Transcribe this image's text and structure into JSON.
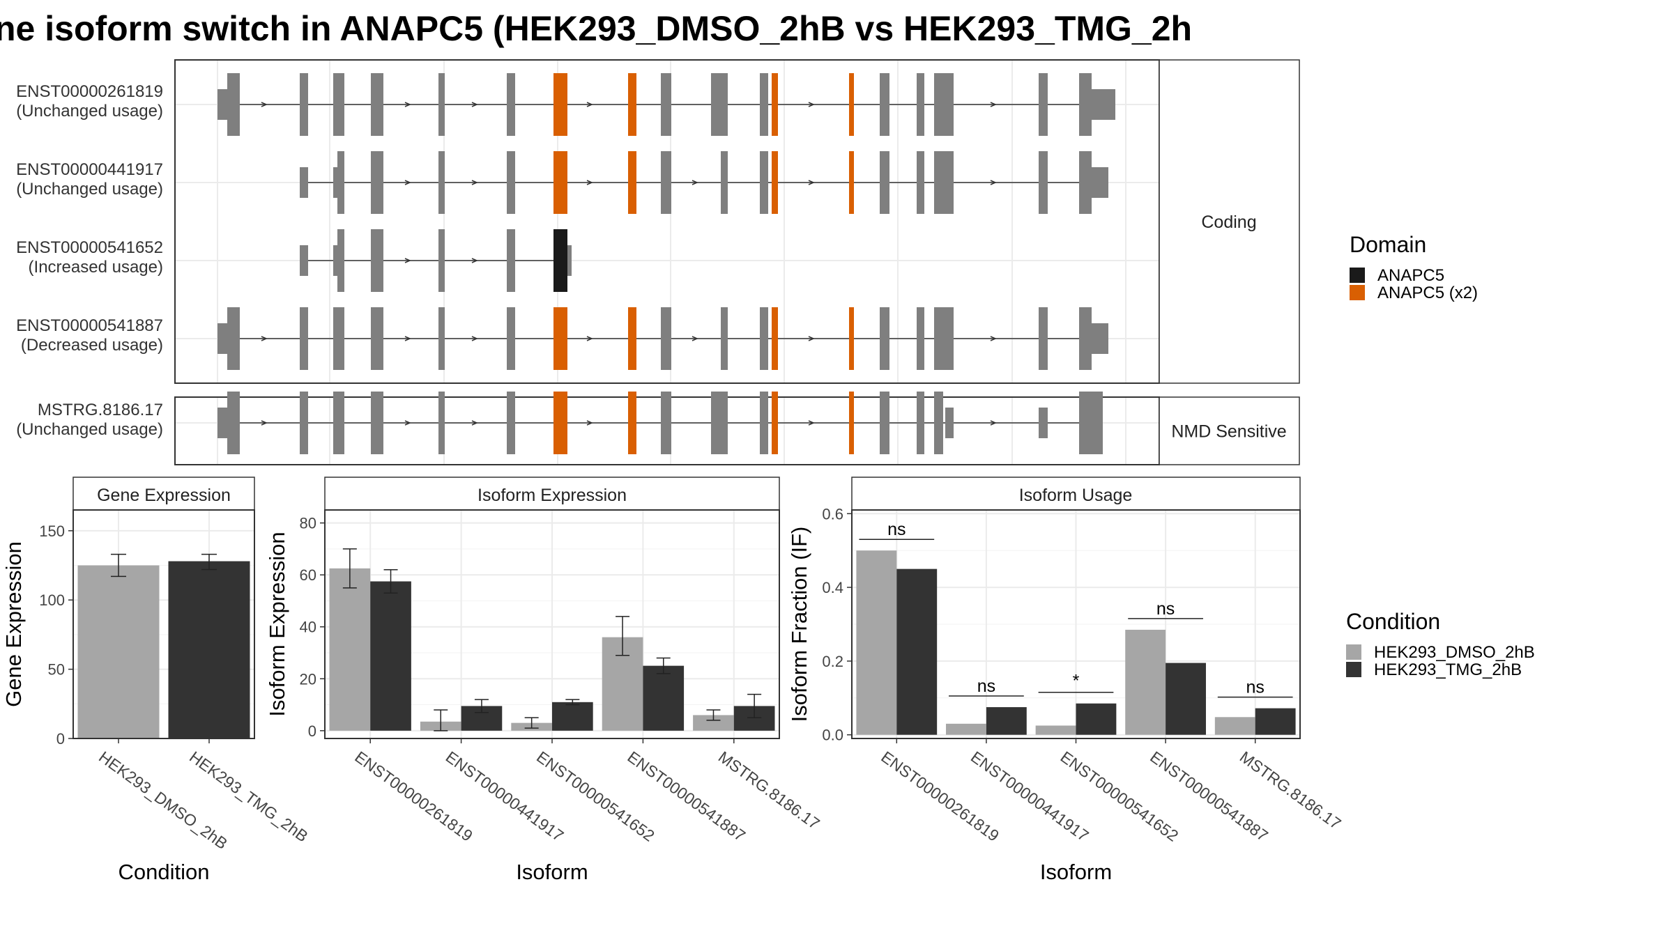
{
  "title": "ne isoform switch in ANAPC5 (HEK293_DMSO_2hB vs HEK293_TMG_2h",
  "colors": {
    "exon": "#7f7f7f",
    "domain_anapc5": "#1a1a1a",
    "domain_anapc5_x2": "#d95f02",
    "dmso": "#a6a6a6",
    "tmg": "#333333"
  },
  "structure": {
    "groups": [
      {
        "label": "Coding",
        "transcripts": [
          {
            "id": "ENST00000261819",
            "usage": "(Unchanged usage)"
          },
          {
            "id": "ENST00000441917",
            "usage": "(Unchanged usage)"
          },
          {
            "id": "ENST00000541652",
            "usage": "(Increased usage)"
          },
          {
            "id": "ENST00000541887",
            "usage": "(Decreased usage)"
          }
        ]
      },
      {
        "label": "NMD Sensitive",
        "transcripts": [
          {
            "id": "MSTRG.8186.17",
            "usage": "(Unchanged usage)"
          }
        ]
      }
    ]
  },
  "domain_legend": {
    "title": "Domain",
    "entries": [
      {
        "label": "ANAPC5",
        "color": "#1a1a1a"
      },
      {
        "label": "ANAPC5 (x2)",
        "color": "#d95f02"
      }
    ]
  },
  "condition_legend": {
    "title": "Condition",
    "entries": [
      {
        "label": "HEK293_DMSO_2hB",
        "color": "#a6a6a6"
      },
      {
        "label": "HEK293_TMG_2hB",
        "color": "#333333"
      }
    ]
  },
  "chart_data": [
    {
      "type": "bar",
      "title": "Gene Expression",
      "xlabel": "Condition",
      "ylabel": "Gene Expression",
      "categories": [
        "HEK293_DMSO_2hB",
        "HEK293_TMG_2hB"
      ],
      "values": [
        125,
        128
      ],
      "errors": [
        [
          117,
          133
        ],
        [
          122,
          133
        ]
      ],
      "ylim": [
        0,
        165
      ],
      "yticks": [
        0,
        50,
        100,
        150
      ]
    },
    {
      "type": "bar",
      "title": "Isoform Expression",
      "xlabel": "Isoform",
      "ylabel": "Isoform Expression",
      "categories": [
        "ENST00000261819",
        "ENST00000441917",
        "ENST00000541652",
        "ENST00000541887",
        "MSTRG.8186.17"
      ],
      "series": [
        {
          "name": "HEK293_DMSO_2hB",
          "values": [
            62.5,
            3.5,
            3.0,
            36.0,
            6.0
          ],
          "errors": [
            [
              55,
              70
            ],
            [
              0,
              8
            ],
            [
              1,
              5
            ],
            [
              29,
              44
            ],
            [
              4,
              8
            ]
          ]
        },
        {
          "name": "HEK293_TMG_2hB",
          "values": [
            57.5,
            9.5,
            11.0,
            25.0,
            9.5
          ],
          "errors": [
            [
              53,
              62
            ],
            [
              7,
              12
            ],
            [
              10,
              12
            ],
            [
              22,
              28
            ],
            [
              5,
              14
            ]
          ]
        }
      ],
      "ylim": [
        -3,
        85
      ],
      "yticks": [
        0,
        20,
        40,
        60,
        80
      ]
    },
    {
      "type": "bar",
      "title": "Isoform Usage",
      "xlabel": "Isoform",
      "ylabel": "Isoform Fraction (IF)",
      "categories": [
        "ENST00000261819",
        "ENST00000441917",
        "ENST00000541652",
        "ENST00000541887",
        "MSTRG.8186.17"
      ],
      "series": [
        {
          "name": "HEK293_DMSO_2hB",
          "values": [
            0.5,
            0.03,
            0.025,
            0.285,
            0.048
          ]
        },
        {
          "name": "HEK293_TMG_2hB",
          "values": [
            0.45,
            0.075,
            0.085,
            0.195,
            0.072
          ]
        }
      ],
      "significance": [
        "ns",
        "ns",
        "*",
        "ns",
        "ns"
      ],
      "ylim": [
        -0.01,
        0.61
      ],
      "yticks": [
        0.0,
        0.2,
        0.4,
        0.6
      ]
    }
  ]
}
